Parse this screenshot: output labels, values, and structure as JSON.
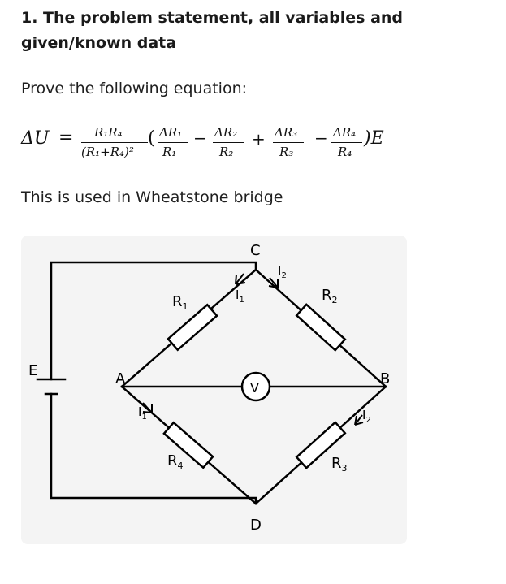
{
  "heading": "1. The problem statement, all variables and given/known data",
  "intro": "Prove the following equation:",
  "equation": {
    "lhs": "ΔU",
    "equals": "=",
    "prefix_num": "R₁R₄",
    "prefix_den": "(R₁+R₄)²",
    "open_paren": "(",
    "t1_num": "ΔR₁",
    "t1_den": "R₁",
    "op1": "−",
    "t2_num": "ΔR₂",
    "t2_den": "R₂",
    "op2": "+",
    "t3_num": "ΔR₃",
    "t3_den": "R₃",
    "op3": "−",
    "t4_num": "ΔR₄",
    "t4_den": "R₄",
    "close": ")E"
  },
  "note": "This is used in Wheatstone bridge",
  "circuit": {
    "node_a": "A",
    "node_b": "B",
    "node_c": "C",
    "node_d": "D",
    "source": "E",
    "voltmeter": "V",
    "r1": "R",
    "r1_sub": "1",
    "r2": "R",
    "r2_sub": "2",
    "r3": "R",
    "r3_sub": "3",
    "r4": "R",
    "r4_sub": "4",
    "i1_top": "I",
    "i1_top_sub": "1",
    "i2_top": "I",
    "i2_top_sub": "2",
    "i1_left": "I",
    "i1_left_sub": "1",
    "i2_right": "I",
    "i2_right_sub": "2"
  }
}
